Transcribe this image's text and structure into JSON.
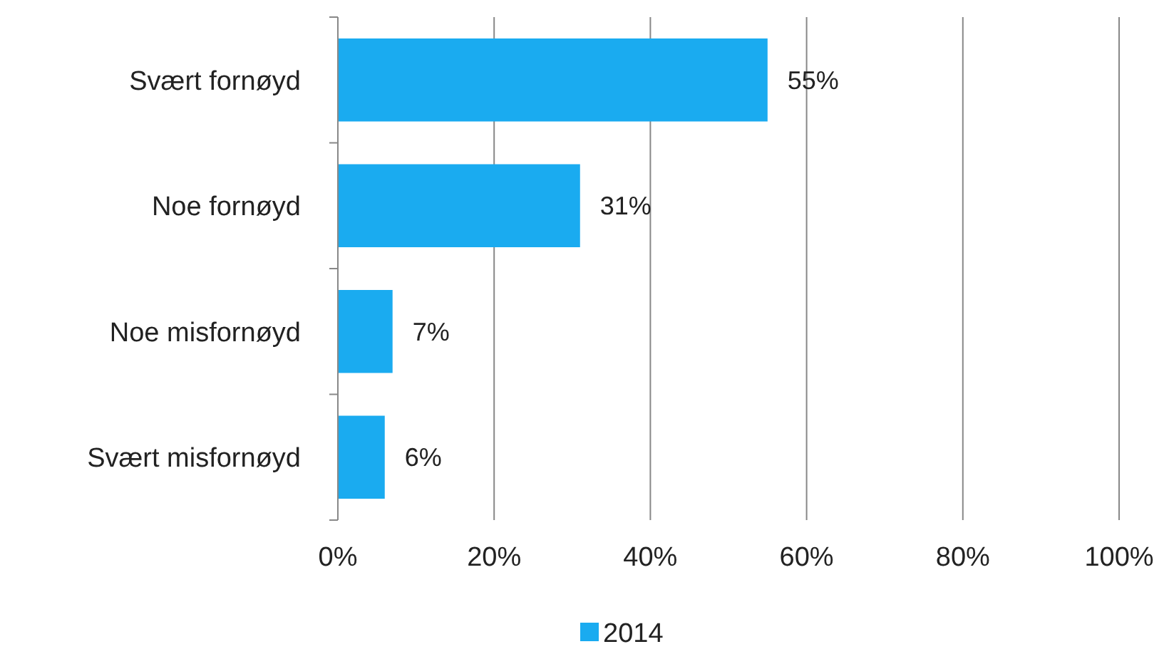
{
  "chart_data": {
    "type": "bar",
    "orientation": "horizontal",
    "categories": [
      "Svært fornøyd",
      "Noe fornøyd",
      "Noe misfornøyd",
      "Svært misfornøyd"
    ],
    "series": [
      {
        "name": "2014",
        "color": "#1aabf0",
        "values": [
          55,
          31,
          7,
          6
        ],
        "value_labels": [
          "55%",
          "31%",
          "7%",
          "6%"
        ]
      }
    ],
    "xlim": [
      0,
      100
    ],
    "xticks": [
      {
        "value": 0,
        "label": "0%"
      },
      {
        "value": 20,
        "label": "20%"
      },
      {
        "value": 40,
        "label": "40%"
      },
      {
        "value": 60,
        "label": "60%"
      },
      {
        "value": 80,
        "label": "80%"
      },
      {
        "value": 100,
        "label": "100%"
      }
    ],
    "grid": "x",
    "legend": "bottom"
  }
}
